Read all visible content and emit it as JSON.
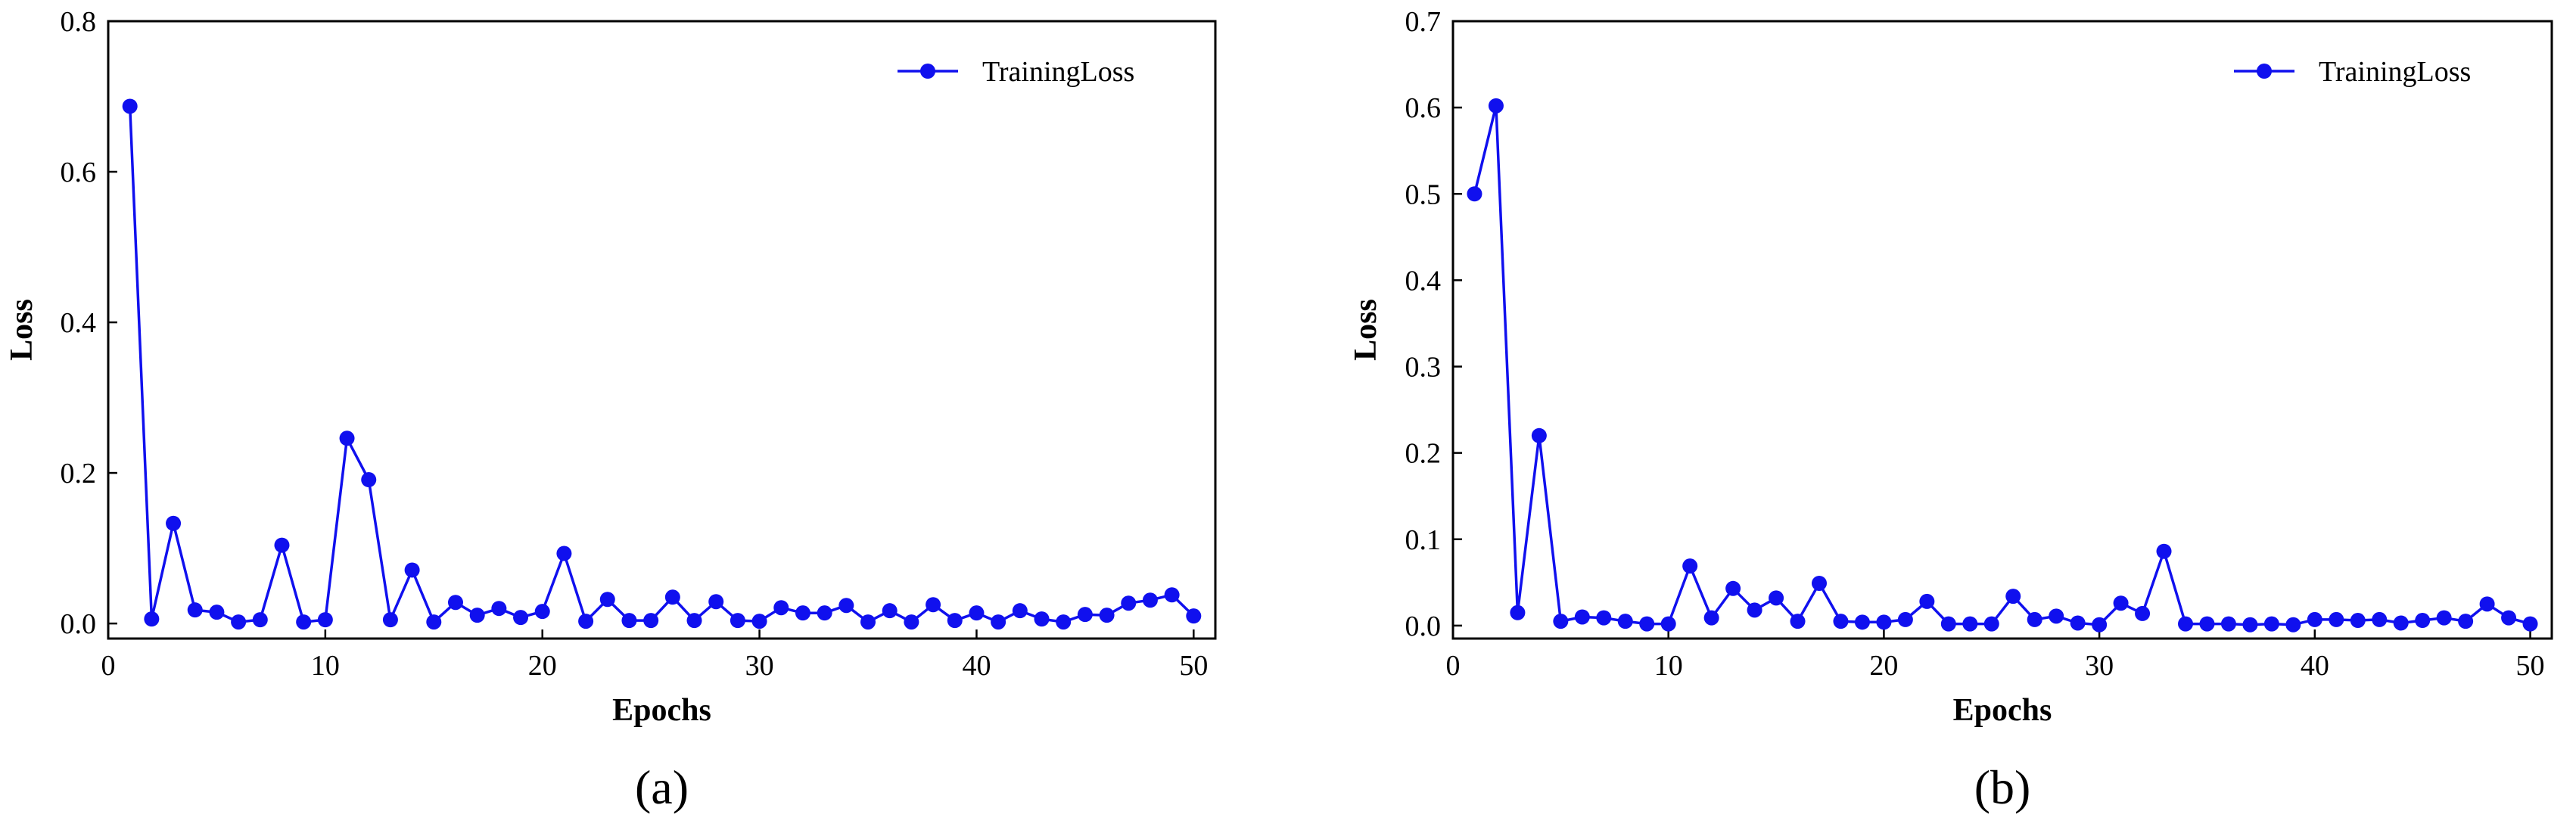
{
  "colors": {
    "series": "#1010ee",
    "axis": "#000000",
    "background": "#ffffff"
  },
  "chart_data": [
    {
      "type": "line",
      "caption": "(a)",
      "xlabel": "Epochs",
      "ylabel": "Loss",
      "xlim": [
        0,
        51
      ],
      "ylim": [
        -0.02,
        0.8
      ],
      "xticks": [
        0,
        10,
        20,
        30,
        40,
        50
      ],
      "xtick_labels": [
        "0",
        "10",
        "20",
        "30",
        "40",
        "50"
      ],
      "yticks": [
        0.0,
        0.2,
        0.4,
        0.6,
        0.8
      ],
      "ytick_labels": [
        "0.0",
        "0.2",
        "0.4",
        "0.6",
        "0.8"
      ],
      "legend_position": "top-right",
      "grid": false,
      "series": [
        {
          "name": "TrainingLoss",
          "marker": "circle",
          "x": [
            1,
            2,
            3,
            4,
            5,
            6,
            7,
            8,
            9,
            10,
            11,
            12,
            13,
            14,
            15,
            16,
            17,
            18,
            19,
            20,
            21,
            22,
            23,
            24,
            25,
            26,
            27,
            28,
            29,
            30,
            31,
            32,
            33,
            34,
            35,
            36,
            37,
            38,
            39,
            40,
            41,
            42,
            43,
            44,
            45,
            46,
            47,
            48,
            49,
            50
          ],
          "y": [
            0.687,
            0.006,
            0.133,
            0.018,
            0.015,
            0.002,
            0.005,
            0.104,
            0.002,
            0.005,
            0.246,
            0.191,
            0.005,
            0.071,
            0.002,
            0.028,
            0.011,
            0.02,
            0.008,
            0.016,
            0.093,
            0.003,
            0.032,
            0.004,
            0.004,
            0.035,
            0.004,
            0.029,
            0.004,
            0.003,
            0.021,
            0.014,
            0.014,
            0.024,
            0.002,
            0.017,
            0.002,
            0.025,
            0.004,
            0.014,
            0.002,
            0.017,
            0.006,
            0.002,
            0.012,
            0.011,
            0.027,
            0.031,
            0.038,
            0.01
          ]
        }
      ]
    },
    {
      "type": "line",
      "caption": "(b)",
      "xlabel": "Epochs",
      "ylabel": "Loss",
      "xlim": [
        0,
        51
      ],
      "ylim": [
        -0.015,
        0.7
      ],
      "xticks": [
        0,
        10,
        20,
        30,
        40,
        50
      ],
      "xtick_labels": [
        "0",
        "10",
        "20",
        "30",
        "40",
        "50"
      ],
      "yticks": [
        0.0,
        0.1,
        0.2,
        0.3,
        0.4,
        0.5,
        0.6,
        0.7
      ],
      "ytick_labels": [
        "0.0",
        "0.1",
        "0.2",
        "0.3",
        "0.4",
        "0.5",
        "0.6",
        "0.7"
      ],
      "legend_position": "top-right",
      "grid": false,
      "series": [
        {
          "name": "TrainingLoss",
          "marker": "circle",
          "x": [
            1,
            2,
            3,
            4,
            5,
            6,
            7,
            8,
            9,
            10,
            11,
            12,
            13,
            14,
            15,
            16,
            17,
            18,
            19,
            20,
            21,
            22,
            23,
            24,
            25,
            26,
            27,
            28,
            29,
            30,
            31,
            32,
            33,
            34,
            35,
            36,
            37,
            38,
            39,
            40,
            41,
            42,
            43,
            44,
            45,
            46,
            47,
            48,
            49,
            50
          ],
          "y": [
            0.5,
            0.602,
            0.015,
            0.22,
            0.005,
            0.01,
            0.009,
            0.005,
            0.002,
            0.002,
            0.069,
            0.009,
            0.043,
            0.018,
            0.032,
            0.005,
            0.049,
            0.005,
            0.004,
            0.004,
            0.007,
            0.028,
            0.002,
            0.002,
            0.002,
            0.034,
            0.007,
            0.011,
            0.003,
            0.001,
            0.026,
            0.014,
            0.086,
            0.002,
            0.002,
            0.002,
            0.001,
            0.002,
            0.001,
            0.007,
            0.007,
            0.006,
            0.007,
            0.003,
            0.006,
            0.009,
            0.005,
            0.025,
            0.009,
            0.002
          ]
        }
      ]
    }
  ]
}
